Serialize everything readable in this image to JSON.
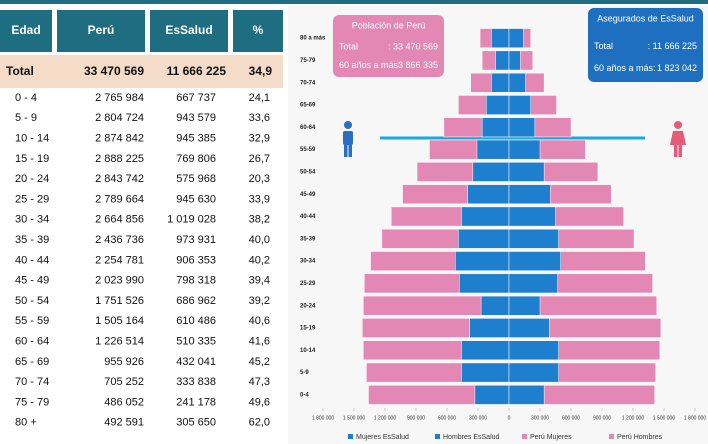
{
  "table": {
    "headers": [
      "Edad",
      "Perú",
      "EsSalud",
      "%"
    ],
    "total": [
      "Total",
      "33 470 569",
      "11 666 225",
      "34,9"
    ],
    "rows": [
      [
        "0 - 4",
        "2 765 984",
        "667 737",
        "24,1"
      ],
      [
        "5 - 9",
        "2 804 724",
        "943 579",
        "33,6"
      ],
      [
        "10 - 14",
        "2 874 842",
        "945 385",
        "32,9"
      ],
      [
        "15 - 19",
        "2 888 225",
        "769 806",
        "26,7"
      ],
      [
        "20 - 24",
        "2 843 742",
        "575 968",
        "20,3"
      ],
      [
        "25 - 29",
        "2 789 664",
        "945 630",
        "33,9"
      ],
      [
        "30 - 34",
        "2 664 856",
        "1 019 028",
        "38,2"
      ],
      [
        "35 - 39",
        "2 436 736",
        "973 931",
        "40,0"
      ],
      [
        "40 - 44",
        "2 254 781",
        "906 353",
        "40,2"
      ],
      [
        "45 - 49",
        "2 023 990",
        "798 318",
        "39,4"
      ],
      [
        "50 - 54",
        "1 751 526",
        "686 962",
        "39,2"
      ],
      [
        "55 - 59",
        "1 505 164",
        "610 486",
        "40,6"
      ],
      [
        "60 - 64",
        "1 226 514",
        "510 335",
        "41,6"
      ],
      [
        "65 - 69",
        "955 926",
        "432 041",
        "45,2"
      ],
      [
        "70 - 74",
        "705 252",
        "333 838",
        "47,3"
      ],
      [
        "75 - 79",
        "486 052",
        "241 178",
        "49,6"
      ],
      [
        "80 +",
        "492 591",
        "305 650",
        "62,0"
      ]
    ]
  },
  "chart_data": {
    "type": "pyramid",
    "categories": [
      "0-4",
      "5-9",
      "10-14",
      "15-19",
      "20-24",
      "25-29",
      "30-34",
      "35-39",
      "40-44",
      "45-49",
      "50-54",
      "55-59",
      "60-64",
      "65-69",
      "70-74",
      "75-79",
      "80 a más"
    ],
    "series": [
      {
        "name": "Mujeres EsSalud",
        "color": "#1f7fcf",
        "side": "left",
        "values": [
          330000,
          460000,
          460000,
          380000,
          270000,
          480000,
          520000,
          490000,
          460000,
          400000,
          350000,
          310000,
          260000,
          220000,
          170000,
          130000,
          170000
        ]
      },
      {
        "name": "Hombres EsSalud",
        "color": "#1f7fcf",
        "side": "right",
        "values": [
          340000,
          480000,
          480000,
          390000,
          300000,
          470000,
          500000,
          480000,
          450000,
          400000,
          340000,
          300000,
          250000,
          210000,
          160000,
          110000,
          140000
        ]
      },
      {
        "name": "Perú Mujeres",
        "color": "#e387b4",
        "side": "left",
        "values": [
          1360000,
          1380000,
          1410000,
          1420000,
          1410000,
          1400000,
          1340000,
          1230000,
          1140000,
          1030000,
          890000,
          770000,
          630000,
          490000,
          370000,
          260000,
          280000
        ]
      },
      {
        "name": "Perú Hombres",
        "color": "#e387b4",
        "side": "right",
        "values": [
          1410000,
          1420000,
          1460000,
          1470000,
          1430000,
          1390000,
          1320000,
          1210000,
          1110000,
          990000,
          860000,
          740000,
          600000,
          460000,
          340000,
          230000,
          210000
        ]
      }
    ],
    "xlim": [
      -1800000,
      1800000
    ],
    "xticks": [
      {
        "value": -1800000,
        "label": "1 800 000"
      },
      {
        "value": -1500000,
        "label": "1 500 000"
      },
      {
        "value": -1200000,
        "label": "1 200 000"
      },
      {
        "value": -900000,
        "label": "900 000"
      },
      {
        "value": -600000,
        "label": "600 000"
      },
      {
        "value": -300000,
        "label": "300 000"
      },
      0,
      {
        "value": 300000,
        "label": "300 000"
      },
      {
        "value": 600000,
        "label": "600 000"
      },
      {
        "value": 900000,
        "label": "900 000"
      },
      {
        "value": 1200000,
        "label": "1 200 000"
      },
      {
        "value": 1500000,
        "label": "1 500 000"
      },
      {
        "value": 1800000,
        "label": "1 800 000"
      }
    ],
    "boxes": [
      {
        "title": "Población de Perú",
        "total_label": "Total",
        "total": ": 33 470 569",
        "older_label": "60 años a más:",
        "older": "3 866 335",
        "color": "#e387b4"
      },
      {
        "title": "Asegurados de EsSalud",
        "total_label": "Total",
        "total": ": 11 666 225",
        "older_label": "60 años a más:",
        "older": "1 823 042",
        "color": "#1f6fc0"
      }
    ]
  }
}
